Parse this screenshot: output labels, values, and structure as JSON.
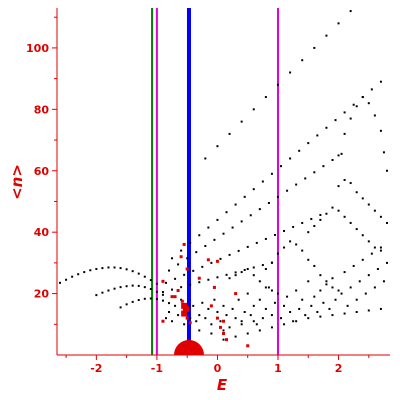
{
  "chart_data": {
    "type": "scatter",
    "xlabel": "E",
    "ylabel": "<n>",
    "xlim": [
      -2.65,
      2.85
    ],
    "ylim": [
      0,
      113
    ],
    "x_ticks": [
      -2,
      -1,
      0,
      1,
      2
    ],
    "y_ticks": [
      20,
      40,
      60,
      80,
      100
    ],
    "grid": false,
    "vertical_lines": [
      {
        "x": -1.08,
        "color": "#008000"
      },
      {
        "x": -1.0,
        "color": "#e000e0"
      },
      {
        "x": -0.47,
        "color": "#0000ff"
      },
      {
        "x": 1.0,
        "color": "#e000e0"
      }
    ],
    "series": [
      {
        "color": "#000000",
        "points": [
          [
            -2.6,
            23.5
          ],
          [
            -2.5,
            24.5
          ],
          [
            -2.4,
            25.5
          ],
          [
            -2.3,
            26.3
          ],
          [
            -2.2,
            27
          ],
          [
            -2.1,
            27.6
          ],
          [
            -2.0,
            28
          ],
          [
            -1.9,
            28.3
          ],
          [
            -1.8,
            28.5
          ],
          [
            -1.7,
            28.5
          ],
          [
            -1.6,
            28.3
          ],
          [
            -1.5,
            27.9
          ],
          [
            -1.4,
            27.3
          ],
          [
            -1.3,
            26.5
          ],
          [
            -1.2,
            25.5
          ],
          [
            -1.1,
            24.4
          ],
          [
            -1.0,
            23.2
          ],
          [
            -2.0,
            19.5
          ],
          [
            -1.9,
            20.3
          ],
          [
            -1.8,
            21
          ],
          [
            -1.7,
            21.6
          ],
          [
            -1.6,
            22.1
          ],
          [
            -1.5,
            22.4
          ],
          [
            -1.4,
            22.6
          ],
          [
            -1.3,
            22.5
          ],
          [
            -1.2,
            22.1
          ],
          [
            -1.1,
            21.5
          ],
          [
            -1.0,
            20.6
          ],
          [
            -0.9,
            19.6
          ],
          [
            -1.6,
            15.5
          ],
          [
            -1.5,
            16.5
          ],
          [
            -1.4,
            17.3
          ],
          [
            -1.3,
            17.9
          ],
          [
            -1.2,
            18.3
          ],
          [
            -1.1,
            18.4
          ],
          [
            -1.0,
            18.2
          ],
          [
            -0.9,
            17.7
          ],
          [
            -0.8,
            16.9
          ],
          [
            -0.75,
            31.5
          ],
          [
            -0.6,
            34
          ],
          [
            -0.45,
            36.5
          ],
          [
            -0.3,
            39
          ],
          [
            -0.15,
            41.5
          ],
          [
            0.0,
            44
          ],
          [
            0.15,
            46.5
          ],
          [
            0.3,
            49
          ],
          [
            0.45,
            51.5
          ],
          [
            0.6,
            54
          ],
          [
            0.75,
            56.5
          ],
          [
            0.9,
            59
          ],
          [
            1.05,
            61.5
          ],
          [
            1.2,
            64
          ],
          [
            1.35,
            66.5
          ],
          [
            1.5,
            69
          ],
          [
            1.65,
            71.5
          ],
          [
            1.8,
            74
          ],
          [
            1.95,
            76.5
          ],
          [
            2.1,
            79
          ],
          [
            2.25,
            81.5
          ],
          [
            2.4,
            84
          ],
          [
            2.55,
            86.5
          ],
          [
            2.7,
            89
          ],
          [
            -0.8,
            27.5
          ],
          [
            -0.65,
            29.5
          ],
          [
            -0.5,
            31.5
          ],
          [
            -0.35,
            33.5
          ],
          [
            -0.2,
            35.5
          ],
          [
            -0.05,
            37.5
          ],
          [
            0.1,
            39.5
          ],
          [
            0.25,
            41.5
          ],
          [
            0.4,
            43.5
          ],
          [
            0.55,
            45.5
          ],
          [
            0.7,
            47.5
          ],
          [
            0.85,
            49.5
          ],
          [
            1.0,
            51.5
          ],
          [
            1.15,
            53.5
          ],
          [
            1.3,
            55.5
          ],
          [
            1.45,
            57.5
          ],
          [
            1.6,
            59.5
          ],
          [
            1.75,
            61.5
          ],
          [
            1.9,
            63.5
          ],
          [
            2.05,
            65.5
          ],
          [
            -0.85,
            23.5
          ],
          [
            -0.7,
            24.8
          ],
          [
            -0.55,
            26.1
          ],
          [
            -0.4,
            27.4
          ],
          [
            -0.25,
            28.7
          ],
          [
            -0.1,
            30
          ],
          [
            0.05,
            31.3
          ],
          [
            0.2,
            32.6
          ],
          [
            0.35,
            33.9
          ],
          [
            0.5,
            35.2
          ],
          [
            0.65,
            36.5
          ],
          [
            0.8,
            37.8
          ],
          [
            0.95,
            39.1
          ],
          [
            1.1,
            40.4
          ],
          [
            1.25,
            41.7
          ],
          [
            1.4,
            43
          ],
          [
            1.55,
            44.3
          ],
          [
            1.7,
            45.6
          ],
          [
            -0.9,
            20.5
          ],
          [
            -0.75,
            21.3
          ],
          [
            -0.6,
            22.1
          ],
          [
            -0.45,
            22.9
          ],
          [
            -0.3,
            23.7
          ],
          [
            -0.15,
            24.5
          ],
          [
            0.0,
            25.3
          ],
          [
            0.15,
            26.1
          ],
          [
            0.3,
            26.9
          ],
          [
            0.45,
            27.7
          ],
          [
            0.6,
            28.5
          ],
          [
            0.75,
            29.3
          ],
          [
            0.9,
            30.1
          ],
          [
            -0.2,
            64
          ],
          [
            0.0,
            68
          ],
          [
            0.2,
            72
          ],
          [
            0.4,
            76
          ],
          [
            0.6,
            80
          ],
          [
            0.8,
            84
          ],
          [
            1.0,
            88
          ],
          [
            1.2,
            92
          ],
          [
            1.4,
            96
          ],
          [
            1.6,
            100
          ],
          [
            1.8,
            104
          ],
          [
            2.0,
            108
          ],
          [
            2.2,
            112
          ],
          [
            2.0,
            65
          ],
          [
            2.1,
            72
          ],
          [
            2.2,
            77
          ],
          [
            2.3,
            81
          ],
          [
            2.4,
            84
          ],
          [
            2.5,
            82
          ],
          [
            2.6,
            78
          ],
          [
            2.7,
            73
          ],
          [
            2.75,
            66
          ],
          [
            2.8,
            60
          ],
          [
            2.0,
            55
          ],
          [
            2.1,
            57
          ],
          [
            2.2,
            56
          ],
          [
            2.3,
            53
          ],
          [
            2.4,
            51
          ],
          [
            2.5,
            49
          ],
          [
            2.6,
            47
          ],
          [
            2.7,
            45
          ],
          [
            2.8,
            43
          ],
          [
            1.5,
            40
          ],
          [
            1.6,
            42
          ],
          [
            1.7,
            44
          ],
          [
            1.8,
            46
          ],
          [
            1.9,
            48
          ],
          [
            2.0,
            47
          ],
          [
            2.1,
            45
          ],
          [
            2.2,
            43
          ],
          [
            2.3,
            41
          ],
          [
            2.4,
            39
          ],
          [
            2.5,
            37
          ],
          [
            2.6,
            35
          ],
          [
            2.7,
            34
          ],
          [
            0.8,
            28
          ],
          [
            0.9,
            30
          ],
          [
            1.0,
            33
          ],
          [
            1.1,
            35
          ],
          [
            1.2,
            37
          ],
          [
            1.3,
            36
          ],
          [
            1.4,
            34
          ],
          [
            1.5,
            31
          ],
          [
            1.6,
            29
          ],
          [
            1.7,
            26
          ],
          [
            1.8,
            24
          ],
          [
            1.9,
            22
          ],
          [
            2.0,
            21
          ],
          [
            0.2,
            25
          ],
          [
            0.3,
            26
          ],
          [
            0.4,
            27
          ],
          [
            0.5,
            28
          ],
          [
            0.6,
            26
          ],
          [
            0.7,
            24
          ],
          [
            0.8,
            22
          ],
          [
            0.9,
            21
          ],
          [
            1.0,
            20
          ],
          [
            -0.85,
            12
          ],
          [
            -0.8,
            14
          ],
          [
            -0.75,
            11
          ],
          [
            -0.7,
            16
          ],
          [
            -0.65,
            13
          ],
          [
            -0.6,
            18
          ],
          [
            -0.55,
            10
          ],
          [
            -0.5,
            14
          ],
          [
            -0.45,
            12
          ],
          [
            -0.4,
            16
          ],
          [
            -0.35,
            11
          ],
          [
            -0.3,
            13
          ],
          [
            -0.25,
            17
          ],
          [
            -0.2,
            12
          ],
          [
            -0.15,
            15
          ],
          [
            -0.1,
            10
          ],
          [
            -0.05,
            18
          ],
          [
            0.0,
            14
          ],
          [
            0.05,
            11
          ],
          [
            0.1,
            16
          ],
          [
            0.15,
            13
          ],
          [
            0.2,
            9
          ],
          [
            0.25,
            15
          ],
          [
            0.3,
            12
          ],
          [
            0.35,
            18
          ],
          [
            0.4,
            11
          ],
          [
            0.45,
            14
          ],
          [
            0.5,
            20
          ],
          [
            0.55,
            13
          ],
          [
            0.6,
            16
          ],
          [
            0.65,
            10
          ],
          [
            0.7,
            18
          ],
          [
            0.75,
            12
          ],
          [
            0.8,
            15
          ],
          [
            0.85,
            22
          ],
          [
            0.9,
            13
          ],
          [
            0.95,
            17
          ],
          [
            1.05,
            12
          ],
          [
            1.1,
            16
          ],
          [
            1.15,
            19
          ],
          [
            1.2,
            14
          ],
          [
            1.25,
            11
          ],
          [
            1.3,
            21
          ],
          [
            1.35,
            15
          ],
          [
            1.4,
            18
          ],
          [
            1.45,
            13
          ],
          [
            1.5,
            24
          ],
          [
            1.55,
            16
          ],
          [
            1.6,
            19
          ],
          [
            1.65,
            14
          ],
          [
            1.7,
            21
          ],
          [
            1.75,
            17
          ],
          [
            1.8,
            23
          ],
          [
            1.85,
            15
          ],
          [
            1.9,
            25
          ],
          [
            1.95,
            18
          ],
          [
            2.05,
            20
          ],
          [
            2.1,
            27
          ],
          [
            2.15,
            16
          ],
          [
            2.2,
            22
          ],
          [
            2.25,
            29
          ],
          [
            2.3,
            18
          ],
          [
            2.35,
            24
          ],
          [
            2.4,
            31
          ],
          [
            2.45,
            20
          ],
          [
            2.5,
            26
          ],
          [
            2.55,
            33
          ],
          [
            2.6,
            22
          ],
          [
            2.65,
            28
          ],
          [
            2.7,
            35
          ],
          [
            2.75,
            24
          ],
          [
            2.8,
            30
          ],
          [
            0.1,
            5
          ],
          [
            0.3,
            6
          ],
          [
            0.5,
            7
          ],
          [
            0.7,
            8
          ],
          [
            0.9,
            9
          ],
          [
            1.1,
            10
          ],
          [
            1.3,
            11
          ],
          [
            1.5,
            12
          ],
          [
            1.7,
            12.5
          ],
          [
            1.9,
            13
          ],
          [
            2.1,
            13.5
          ],
          [
            2.3,
            14
          ],
          [
            2.5,
            14.5
          ],
          [
            2.7,
            15
          ],
          [
            -0.3,
            8
          ],
          [
            -0.1,
            7
          ],
          [
            0.1,
            8
          ],
          [
            0.4,
            10
          ],
          [
            0.6,
            11
          ]
        ]
      },
      {
        "color": "#e00000",
        "points": [
          [
            -0.55,
            36
          ],
          [
            -0.6,
            32
          ],
          [
            -0.5,
            28
          ],
          [
            -0.15,
            31
          ],
          [
            0.0,
            30.5
          ],
          [
            -0.65,
            21
          ],
          [
            -0.7,
            19
          ],
          [
            -0.75,
            19
          ],
          [
            -0.58,
            17.5
          ],
          [
            -0.55,
            16
          ],
          [
            -0.52,
            15
          ],
          [
            -0.55,
            13.5
          ],
          [
            -0.5,
            12
          ],
          [
            -0.9,
            11
          ],
          [
            -0.45,
            10.5
          ],
          [
            0.0,
            12
          ],
          [
            0.1,
            11
          ],
          [
            0.05,
            9
          ],
          [
            -0.1,
            16
          ],
          [
            0.1,
            7
          ],
          [
            0.15,
            5
          ],
          [
            0.5,
            3
          ],
          [
            -0.05,
            22
          ],
          [
            0.3,
            20
          ],
          [
            -0.3,
            25
          ],
          [
            -0.9,
            24
          ]
        ]
      }
    ]
  }
}
